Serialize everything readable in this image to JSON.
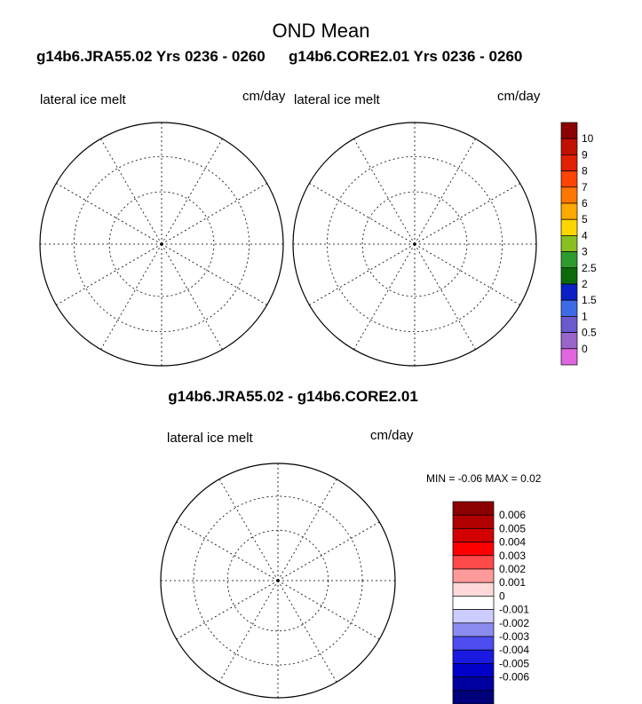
{
  "chart_data": [
    {
      "type": "map",
      "title": "OND Mean",
      "subtitle": "g14b6.JRA55.02  Yrs 0236 - 0260",
      "variable": "lateral ice melt",
      "units": "cm/day",
      "projection": "north polar stereographic"
    },
    {
      "type": "map",
      "subtitle": "g14b6.CORE2.01  Yrs 0236 - 0260",
      "variable": "lateral ice melt",
      "units": "cm/day",
      "projection": "north polar stereographic"
    },
    {
      "type": "map",
      "title": "g14b6.JRA55.02 - g14b6.CORE2.01",
      "variable": "lateral ice melt",
      "units": "cm/day",
      "min_label": "MIN =",
      "min_value": "-0.06",
      "max_label": "MAX =",
      "max_value": "0.02"
    }
  ],
  "colorbar_top": {
    "labels": [
      "0",
      "0.5",
      "1",
      "1.5",
      "2",
      "2.5",
      "3",
      "4",
      "5",
      "6",
      "7",
      "8",
      "9",
      "10"
    ],
    "colors": [
      "#e066e0",
      "#9966cc",
      "#6a5acd",
      "#3d6be8",
      "#0a1fc4",
      "#0b6b0b",
      "#2e9b2e",
      "#88c020",
      "#ffd500",
      "#ffaa00",
      "#ff7700",
      "#ff4400",
      "#e02000",
      "#c01000",
      "#8b0000"
    ]
  },
  "colorbar_diff": {
    "labels": [
      "0.006",
      "0.005",
      "0.004",
      "0.003",
      "0.002",
      "0.001",
      "0",
      "-0.001",
      "-0.002",
      "-0.003",
      "-0.004",
      "-0.005",
      "-0.006"
    ],
    "colors": [
      "#8b0000",
      "#b00000",
      "#d40000",
      "#ff0000",
      "#ff4a4a",
      "#ff9a9a",
      "#ffd9d9",
      "#ffffff",
      "#ccccff",
      "#8c8cf0",
      "#4d4df0",
      "#1a1ae0",
      "#0000c8",
      "#0000a0",
      "#00007a"
    ]
  },
  "colors": {
    "land": "#c8c8c8",
    "ocean": "#ffffff",
    "ice_melt": "#8b0000",
    "diff_neg": "#c3c3f5",
    "diff_pos": "#ffcccc"
  }
}
